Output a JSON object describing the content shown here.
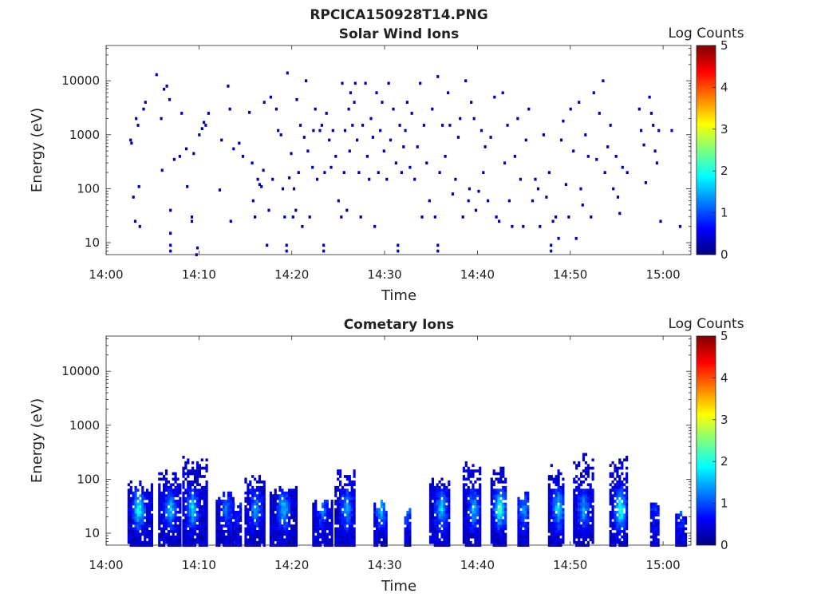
{
  "figure_title": "RPCICA150928T14.PNG",
  "colormap": [
    "#00007f",
    "#0000ff",
    "#007fff",
    "#00ffff",
    "#7fff7f",
    "#ffff00",
    "#ff7f00",
    "#ff0000",
    "#7f0000"
  ],
  "chart_data": [
    {
      "type": "heatmap",
      "title": "Solar Wind Ions",
      "xlabel": "Time",
      "ylabel": "Energy (eV)",
      "x_ticks": [
        "14:00",
        "14:10",
        "14:20",
        "14:30",
        "14:40",
        "14:50",
        "15:00"
      ],
      "xlim_minutes": [
        0,
        63
      ],
      "y_scale": "log",
      "y_ticks": [
        "10",
        "100",
        "1000",
        "10000"
      ],
      "ylim": [
        6,
        45000
      ],
      "colorbar": {
        "label": "Log Counts",
        "range": [
          0,
          5
        ],
        "ticks": [
          "0",
          "1",
          "2",
          "3",
          "4",
          "5"
        ]
      },
      "cells": [
        [
          2.5,
          800,
          0.2
        ],
        [
          2.6,
          700,
          0.2
        ],
        [
          2.8,
          70,
          0.2
        ],
        [
          3.0,
          25,
          0.2
        ],
        [
          3.1,
          2000,
          0.2
        ],
        [
          3.3,
          1500,
          0.3
        ],
        [
          3.4,
          110,
          0.2
        ],
        [
          3.5,
          20,
          0.2
        ],
        [
          3.9,
          3000,
          0.2
        ],
        [
          4.1,
          4000,
          0.2
        ],
        [
          5.3,
          13000,
          0.3
        ],
        [
          5.8,
          2000,
          0.2
        ],
        [
          5.9,
          220,
          0.2
        ],
        [
          6.1,
          7000,
          0.2
        ],
        [
          6.4,
          8000,
          0.2
        ],
        [
          6.7,
          4500,
          0.3
        ],
        [
          6.8,
          15,
          0.3
        ],
        [
          6.8,
          9,
          0.4
        ],
        [
          6.8,
          7,
          0.4
        ],
        [
          6.8,
          40,
          0.2
        ],
        [
          7.2,
          350,
          0.2
        ],
        [
          7.8,
          400,
          0.2
        ],
        [
          8.0,
          2500,
          0.3
        ],
        [
          8.5,
          550,
          0.2
        ],
        [
          8.6,
          110,
          0.2
        ],
        [
          9.1,
          25,
          0.2
        ],
        [
          9.1,
          30,
          0.2
        ],
        [
          9.3,
          450,
          0.2
        ],
        [
          9.6,
          6,
          0.3
        ],
        [
          9.7,
          8,
          0.4
        ],
        [
          9.9,
          1000,
          0.2
        ],
        [
          10.2,
          1300,
          0.2
        ],
        [
          10.4,
          1700,
          0.2
        ],
        [
          10.6,
          1500,
          0.2
        ],
        [
          10.9,
          2500,
          0.3
        ],
        [
          12.1,
          95,
          0.2
        ],
        [
          12.3,
          800,
          0.2
        ],
        [
          13.0,
          8000,
          0.2
        ],
        [
          13.2,
          3000,
          0.2
        ],
        [
          13.3,
          25,
          0.2
        ],
        [
          13.6,
          550,
          0.2
        ],
        [
          14.2,
          700,
          0.2
        ],
        [
          14.6,
          400,
          0.2
        ],
        [
          15.3,
          2600,
          0.2
        ],
        [
          15.6,
          300,
          0.2
        ],
        [
          15.7,
          60,
          0.2
        ],
        [
          15.9,
          30,
          0.2
        ],
        [
          16.2,
          150,
          0.2
        ],
        [
          16.4,
          120,
          0.2
        ],
        [
          16.6,
          110,
          0.2
        ],
        [
          16.8,
          220,
          0.2
        ],
        [
          16.9,
          4000,
          0.2
        ],
        [
          17.2,
          9,
          0.3
        ],
        [
          17.4,
          40,
          0.2
        ],
        [
          17.6,
          5000,
          0.2
        ],
        [
          17.8,
          150,
          0.2
        ],
        [
          18.2,
          3000,
          0.2
        ],
        [
          18.4,
          1200,
          0.2
        ],
        [
          18.7,
          1000,
          0.2
        ],
        [
          18.9,
          100,
          0.2
        ],
        [
          19.1,
          30,
          0.3
        ],
        [
          19.3,
          7,
          0.3
        ],
        [
          19.3,
          9,
          0.3
        ],
        [
          19.4,
          14000,
          0.2
        ],
        [
          19.6,
          160,
          0.2
        ],
        [
          19.8,
          450,
          0.2
        ],
        [
          20.0,
          30,
          0.2
        ],
        [
          20.1,
          100,
          0.2
        ],
        [
          20.3,
          40,
          0.3
        ],
        [
          20.4,
          4500,
          0.2
        ],
        [
          20.6,
          200,
          0.2
        ],
        [
          20.8,
          1500,
          0.2
        ],
        [
          21.0,
          20,
          0.2
        ],
        [
          21.2,
          900,
          0.2
        ],
        [
          21.4,
          10000,
          0.2
        ],
        [
          21.6,
          500,
          0.2
        ],
        [
          21.8,
          30,
          0.2
        ],
        [
          22.1,
          250,
          0.2
        ],
        [
          22.2,
          1200,
          0.2
        ],
        [
          22.4,
          3000,
          0.2
        ],
        [
          22.6,
          150,
          0.2
        ],
        [
          22.9,
          1200,
          0.2
        ],
        [
          23.1,
          1500,
          0.2
        ],
        [
          23.3,
          7,
          0.3
        ],
        [
          23.3,
          9,
          0.3
        ],
        [
          23.4,
          200,
          0.2
        ],
        [
          23.6,
          2500,
          0.2
        ],
        [
          23.9,
          800,
          0.2
        ],
        [
          24.1,
          250,
          0.2
        ],
        [
          24.3,
          1200,
          0.2
        ],
        [
          24.6,
          400,
          0.2
        ],
        [
          24.9,
          60,
          0.2
        ],
        [
          25.2,
          30,
          0.3
        ],
        [
          25.3,
          9000,
          0.2
        ],
        [
          25.5,
          200,
          0.2
        ],
        [
          25.6,
          1200,
          0.2
        ],
        [
          25.8,
          40,
          0.2
        ],
        [
          26.0,
          3000,
          0.2
        ],
        [
          26.1,
          500,
          0.2
        ],
        [
          26.2,
          6000,
          0.2
        ],
        [
          26.4,
          1500,
          0.3
        ],
        [
          26.6,
          4000,
          0.2
        ],
        [
          26.7,
          9000,
          0.2
        ],
        [
          26.9,
          800,
          0.2
        ],
        [
          27.1,
          200,
          0.2
        ],
        [
          27.3,
          30,
          0.2
        ],
        [
          27.5,
          1500,
          0.2
        ],
        [
          27.8,
          9000,
          0.2
        ],
        [
          28.0,
          400,
          0.2
        ],
        [
          28.2,
          150,
          0.2
        ],
        [
          28.4,
          2000,
          0.2
        ],
        [
          28.6,
          900,
          0.2
        ],
        [
          28.8,
          20,
          0.3
        ],
        [
          29.0,
          6000,
          0.2
        ],
        [
          29.2,
          200,
          0.2
        ],
        [
          29.4,
          1200,
          0.2
        ],
        [
          29.6,
          4000,
          0.2
        ],
        [
          29.8,
          500,
          0.2
        ],
        [
          30.1,
          150,
          0.2
        ],
        [
          30.3,
          9000,
          0.2
        ],
        [
          30.5,
          800,
          0.2
        ],
        [
          30.8,
          3000,
          0.2
        ],
        [
          31.1,
          300,
          0.2
        ],
        [
          31.3,
          7,
          0.3
        ],
        [
          31.3,
          9,
          0.3
        ],
        [
          31.5,
          1500,
          0.2
        ],
        [
          31.7,
          200,
          0.2
        ],
        [
          31.9,
          600,
          0.2
        ],
        [
          32.1,
          1200,
          0.2
        ],
        [
          32.3,
          4000,
          0.2
        ],
        [
          32.6,
          250,
          0.2
        ],
        [
          32.8,
          2500,
          0.2
        ],
        [
          33.1,
          150,
          0.2
        ],
        [
          33.4,
          600,
          0.2
        ],
        [
          33.7,
          9000,
          0.2
        ],
        [
          33.9,
          30,
          0.2
        ],
        [
          34.1,
          1500,
          0.2
        ],
        [
          34.4,
          300,
          0.2
        ],
        [
          34.7,
          60,
          0.2
        ],
        [
          35.0,
          3000,
          0.2
        ],
        [
          35.3,
          30,
          0.3
        ],
        [
          35.6,
          7,
          0.3
        ],
        [
          35.6,
          9,
          0.3
        ],
        [
          35.6,
          12000,
          0.2
        ],
        [
          35.8,
          200,
          0.2
        ],
        [
          36.1,
          1500,
          0.2
        ],
        [
          36.4,
          400,
          0.2
        ],
        [
          36.7,
          6000,
          0.2
        ],
        [
          36.9,
          1500,
          0.2
        ],
        [
          37.2,
          80,
          0.2
        ],
        [
          37.5,
          150,
          0.2
        ],
        [
          37.8,
          900,
          0.2
        ],
        [
          38.0,
          2000,
          0.2
        ],
        [
          38.3,
          30,
          0.2
        ],
        [
          38.6,
          10000,
          0.2
        ],
        [
          38.9,
          60,
          0.2
        ],
        [
          39.0,
          100,
          0.3
        ],
        [
          39.2,
          4000,
          0.2
        ],
        [
          39.5,
          2000,
          0.2
        ],
        [
          39.7,
          40,
          0.2
        ],
        [
          40.0,
          90,
          0.2
        ],
        [
          40.3,
          1200,
          0.2
        ],
        [
          40.5,
          200,
          0.2
        ],
        [
          40.7,
          600,
          0.2
        ],
        [
          41.0,
          60,
          0.2
        ],
        [
          41.3,
          900,
          0.2
        ],
        [
          41.7,
          5000,
          0.2
        ],
        [
          41.9,
          30,
          0.4
        ],
        [
          42.2,
          25,
          0.3
        ],
        [
          42.6,
          6000,
          0.2
        ],
        [
          42.8,
          300,
          0.2
        ],
        [
          43.1,
          1500,
          0.2
        ],
        [
          43.3,
          60,
          0.2
        ],
        [
          43.6,
          20,
          0.2
        ],
        [
          43.9,
          400,
          0.2
        ],
        [
          44.2,
          2000,
          0.2
        ],
        [
          44.5,
          150,
          0.2
        ],
        [
          44.8,
          20,
          0.2
        ],
        [
          45.1,
          800,
          0.2
        ],
        [
          45.4,
          3000,
          0.2
        ],
        [
          45.8,
          60,
          0.2
        ],
        [
          46.1,
          150,
          0.2
        ],
        [
          46.4,
          100,
          0.2
        ],
        [
          46.6,
          20,
          0.2
        ],
        [
          47.0,
          1000,
          0.2
        ],
        [
          47.3,
          70,
          0.2
        ],
        [
          47.6,
          200,
          0.2
        ],
        [
          47.8,
          7,
          0.3
        ],
        [
          47.8,
          9,
          0.3
        ],
        [
          48.0,
          25,
          0.2
        ],
        [
          48.3,
          30,
          0.3
        ],
        [
          48.6,
          12,
          0.3
        ],
        [
          48.9,
          800,
          0.2
        ],
        [
          49.1,
          1800,
          0.2
        ],
        [
          49.4,
          120,
          0.2
        ],
        [
          49.7,
          30,
          0.2
        ],
        [
          49.9,
          3000,
          0.2
        ],
        [
          50.2,
          500,
          0.2
        ],
        [
          50.5,
          12,
          0.3
        ],
        [
          50.8,
          4000,
          0.2
        ],
        [
          51.0,
          100,
          0.3
        ],
        [
          51.2,
          50,
          0.3
        ],
        [
          51.5,
          1000,
          0.2
        ],
        [
          51.8,
          400,
          0.2
        ],
        [
          52.1,
          30,
          0.2
        ],
        [
          52.4,
          6000,
          0.2
        ],
        [
          52.7,
          350,
          0.2
        ],
        [
          53.0,
          2500,
          0.2
        ],
        [
          53.4,
          10000,
          0.2
        ],
        [
          53.6,
          200,
          0.2
        ],
        [
          53.9,
          600,
          0.2
        ],
        [
          54.2,
          1500,
          0.2
        ],
        [
          54.5,
          100,
          0.3
        ],
        [
          54.8,
          400,
          0.2
        ],
        [
          55.0,
          70,
          0.3
        ],
        [
          55.2,
          35,
          0.3
        ],
        [
          55.5,
          250,
          0.2
        ],
        [
          56.0,
          200,
          0.2
        ],
        [
          57.3,
          3000,
          0.2
        ],
        [
          57.5,
          1200,
          0.2
        ],
        [
          57.8,
          650,
          0.2
        ],
        [
          58.0,
          130,
          0.2
        ],
        [
          58.4,
          5000,
          0.2
        ],
        [
          58.6,
          2500,
          0.2
        ],
        [
          58.8,
          1500,
          0.2
        ],
        [
          59.0,
          500,
          0.2
        ],
        [
          59.2,
          300,
          0.2
        ],
        [
          59.4,
          1200,
          0.2
        ],
        [
          59.6,
          25,
          0.2
        ],
        [
          60.8,
          1200,
          0.2
        ],
        [
          61.7,
          20,
          0.2
        ]
      ]
    },
    {
      "type": "heatmap",
      "title": "Cometary Ions",
      "xlabel": "Time",
      "ylabel": "Energy (eV)",
      "x_ticks": [
        "14:00",
        "14:10",
        "14:20",
        "14:30",
        "14:40",
        "14:50",
        "15:00"
      ],
      "xlim_minutes": [
        0,
        63
      ],
      "y_scale": "log",
      "y_ticks": [
        "10",
        "100",
        "1000",
        "10000"
      ],
      "ylim": [
        6,
        45000
      ],
      "colorbar": {
        "label": "Log Counts",
        "range": [
          0,
          5
        ],
        "ticks": [
          "0",
          "1",
          "2",
          "3",
          "4",
          "5"
        ]
      },
      "bursts": [
        {
          "t0": 2.3,
          "t1": 4.8,
          "emax": 100,
          "peak_t": 3.4,
          "peak": 1.8
        },
        {
          "t0": 5.6,
          "t1": 8.0,
          "emax": 150,
          "peak_t": 6.8,
          "peak": 1.4
        },
        {
          "t0": 8.2,
          "t1": 10.7,
          "emax": 280,
          "peak_t": 9.2,
          "peak": 1.5
        },
        {
          "t0": 11.8,
          "t1": 13.6,
          "emax": 70,
          "peak_t": 12.8,
          "peak": 0.8
        },
        {
          "t0": 13.6,
          "t1": 14.4,
          "emax": 45,
          "peak_t": 14.0,
          "peak": 0.5
        },
        {
          "t0": 14.9,
          "t1": 16.9,
          "emax": 140,
          "peak_t": 16.0,
          "peak": 1.2
        },
        {
          "t0": 17.6,
          "t1": 20.5,
          "emax": 90,
          "peak_t": 19.0,
          "peak": 1.4
        },
        {
          "t0": 22.2,
          "t1": 24.3,
          "emax": 45,
          "peak_t": 23.2,
          "peak": 0.9
        },
        {
          "t0": 24.6,
          "t1": 26.6,
          "emax": 170,
          "peak_t": 25.8,
          "peak": 1.3
        },
        {
          "t0": 28.8,
          "t1": 30.2,
          "emax": 50,
          "peak_t": 29.5,
          "peak": 1.3
        },
        {
          "t0": 32.1,
          "t1": 32.8,
          "emax": 35,
          "peak_t": 32.4,
          "peak": 1.0
        },
        {
          "t0": 34.8,
          "t1": 37.0,
          "emax": 120,
          "peak_t": 36.0,
          "peak": 1.4
        },
        {
          "t0": 38.4,
          "t1": 40.2,
          "emax": 240,
          "peak_t": 39.5,
          "peak": 1.3
        },
        {
          "t0": 41.4,
          "t1": 43.0,
          "emax": 200,
          "peak_t": 42.3,
          "peak": 2.0
        },
        {
          "t0": 44.3,
          "t1": 45.4,
          "emax": 70,
          "peak_t": 44.9,
          "peak": 1.0
        },
        {
          "t0": 47.6,
          "t1": 49.3,
          "emax": 200,
          "peak_t": 48.6,
          "peak": 1.5
        },
        {
          "t0": 50.3,
          "t1": 52.3,
          "emax": 320,
          "peak_t": 51.3,
          "peak": 1.2
        },
        {
          "t0": 54.2,
          "t1": 56.0,
          "emax": 330,
          "peak_t": 55.3,
          "peak": 2.0
        },
        {
          "t0": 58.6,
          "t1": 59.4,
          "emax": 45,
          "peak_t": 59.0,
          "peak": 0.5
        },
        {
          "t0": 61.3,
          "t1": 62.4,
          "emax": 35,
          "peak_t": 61.8,
          "peak": 0.7
        }
      ]
    }
  ]
}
